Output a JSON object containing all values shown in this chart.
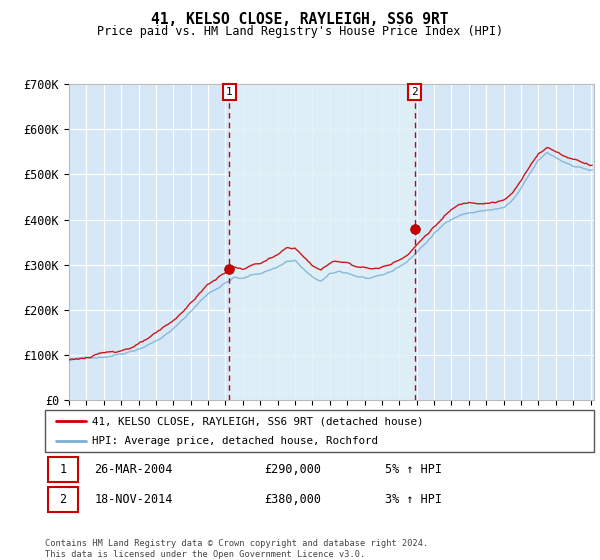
{
  "title": "41, KELSO CLOSE, RAYLEIGH, SS6 9RT",
  "subtitle": "Price paid vs. HM Land Registry's House Price Index (HPI)",
  "background_color": "#ffffff",
  "plot_bg_color": "#d6e8f7",
  "plot_bg_color2": "#dff0f8",
  "grid_color": "#ffffff",
  "sale1": {
    "date": "26-MAR-2004",
    "price": 290000,
    "label": "1",
    "pct": "5%",
    "dir": "↑"
  },
  "sale2": {
    "date": "18-NOV-2014",
    "price": 380000,
    "label": "2",
    "pct": "3%",
    "dir": "↑"
  },
  "legend_entry1": "41, KELSO CLOSE, RAYLEIGH, SS6 9RT (detached house)",
  "legend_entry2": "HPI: Average price, detached house, Rochford",
  "footnote": "Contains HM Land Registry data © Crown copyright and database right 2024.\nThis data is licensed under the Open Government Licence v3.0.",
  "hpi_color": "#7bafd4",
  "price_color": "#cc0000",
  "vline_color": "#cc0000",
  "ylim": [
    0,
    700000
  ],
  "yticks": [
    0,
    100000,
    200000,
    300000,
    400000,
    500000,
    600000,
    700000
  ],
  "ytick_labels": [
    "£0",
    "£100K",
    "£200K",
    "£300K",
    "£400K",
    "£500K",
    "£600K",
    "£700K"
  ],
  "sale1_x": 2004.23,
  "sale1_y": 290000,
  "sale2_x": 2014.88,
  "sale2_y": 380000,
  "xlim_start": 1995.0,
  "xlim_end": 2025.2
}
